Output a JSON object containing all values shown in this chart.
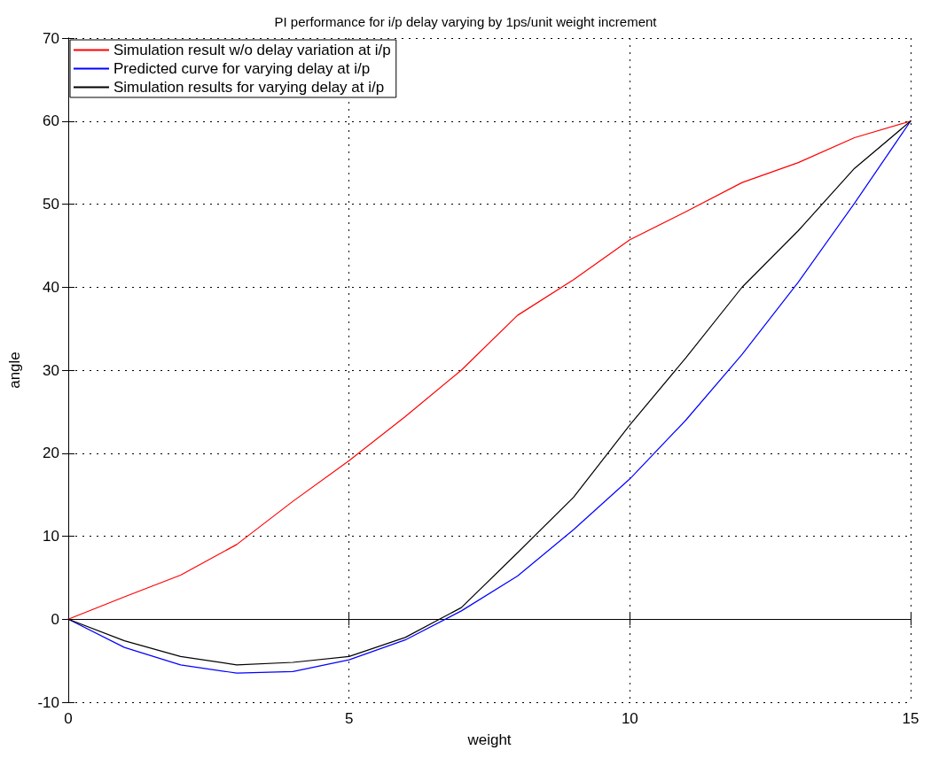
{
  "chart_data": {
    "type": "line",
    "title": "PI performance for i/p delay varying by 1ps/unit weight increment",
    "xlabel": "weight",
    "ylabel": "angle",
    "x": [
      0,
      1,
      2,
      3,
      4,
      5,
      6,
      7,
      8,
      9,
      10,
      11,
      12,
      13,
      14,
      15
    ],
    "series": [
      {
        "name": "Simulation result w/o delay variation at i/p",
        "color": "#ff0000",
        "values": [
          0,
          2.7,
          5.3,
          9.0,
          14.2,
          19.1,
          24.4,
          30.0,
          36.6,
          40.9,
          45.7,
          49.1,
          52.6,
          55.0,
          58.0,
          60.0
        ]
      },
      {
        "name": "Predicted curve for varying delay at i/p",
        "color": "#0000ff",
        "values": [
          0,
          -3.4,
          -5.5,
          -6.5,
          -6.3,
          -4.9,
          -2.5,
          1.0,
          5.2,
          10.8,
          16.9,
          24.0,
          31.9,
          40.6,
          50.1,
          60.0
        ]
      },
      {
        "name": "Simulation results for varying delay at i/p",
        "color": "#000000",
        "values": [
          0,
          -2.6,
          -4.5,
          -5.5,
          -5.2,
          -4.5,
          -2.2,
          1.4,
          8.0,
          14.7,
          23.4,
          31.5,
          40.0,
          46.8,
          54.3,
          60.0
        ]
      }
    ],
    "xlim": [
      0,
      15
    ],
    "xticks": [
      0,
      5,
      10,
      15
    ],
    "ylim": [
      -10,
      70
    ],
    "yticks": [
      -10,
      0,
      10,
      20,
      30,
      40,
      50,
      60,
      70
    ],
    "grid": true,
    "legend": "top left",
    "marker": "none",
    "line_style": "solid"
  }
}
